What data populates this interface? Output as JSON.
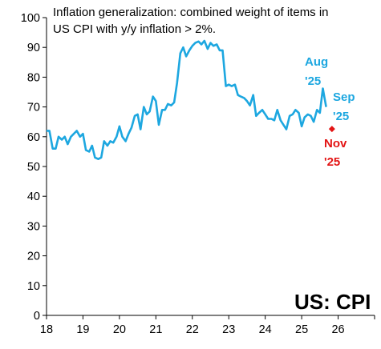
{
  "chart_data": {
    "type": "line",
    "title_lines": [
      "Inflation generalization: combined weight of items in",
      "US CPI with y/y inflation > 2%."
    ],
    "watermark": "US: CPI",
    "xlim": [
      2018,
      2027
    ],
    "ylim": [
      0,
      100
    ],
    "yticks": [
      0,
      10,
      20,
      30,
      40,
      50,
      60,
      70,
      80,
      90,
      100
    ],
    "xtick_values": [
      2018,
      2019,
      2020,
      2021,
      2022,
      2023,
      2024,
      2025,
      2026
    ],
    "xtick_labels": [
      "18",
      "19",
      "20",
      "21",
      "22",
      "23",
      "24",
      "25",
      "26"
    ],
    "grid": false,
    "series": [
      {
        "color": "#1da7e0",
        "x": [
          2018.0,
          2018.08,
          2018.17,
          2018.25,
          2018.33,
          2018.42,
          2018.5,
          2018.58,
          2018.67,
          2018.75,
          2018.83,
          2018.92,
          2019.0,
          2019.08,
          2019.17,
          2019.25,
          2019.33,
          2019.42,
          2019.5,
          2019.58,
          2019.67,
          2019.75,
          2019.83,
          2019.92,
          2020.0,
          2020.08,
          2020.17,
          2020.25,
          2020.33,
          2020.42,
          2020.5,
          2020.58,
          2020.67,
          2020.75,
          2020.83,
          2020.92,
          2021.0,
          2021.08,
          2021.17,
          2021.25,
          2021.33,
          2021.42,
          2021.5,
          2021.58,
          2021.67,
          2021.75,
          2021.83,
          2021.92,
          2022.0,
          2022.08,
          2022.17,
          2022.25,
          2022.33,
          2022.42,
          2022.5,
          2022.58,
          2022.67,
          2022.75,
          2022.83,
          2022.92,
          2023.0,
          2023.08,
          2023.17,
          2023.25,
          2023.33,
          2023.42,
          2023.5,
          2023.58,
          2023.67,
          2023.75,
          2023.83,
          2023.92,
          2024.0,
          2024.08,
          2024.17,
          2024.25,
          2024.33,
          2024.42,
          2024.5,
          2024.58,
          2024.67,
          2024.75,
          2024.83,
          2024.92,
          2025.0,
          2025.08,
          2025.17,
          2025.25,
          2025.33,
          2025.42,
          2025.5,
          2025.58,
          2025.67
        ],
        "y": [
          62,
          62,
          56,
          56,
          60,
          59,
          60,
          57.5,
          60,
          61,
          62,
          60,
          61,
          55.5,
          55,
          57,
          53,
          52.5,
          53,
          58.5,
          57,
          58.5,
          58,
          60,
          63.5,
          60,
          58.5,
          61,
          63,
          67,
          67.5,
          62.5,
          70,
          67.5,
          68.5,
          73.5,
          72,
          64,
          69,
          69,
          71,
          70.5,
          71.5,
          78,
          88,
          90,
          87,
          89,
          90.5,
          91.5,
          92,
          91,
          92.2,
          89.5,
          91.5,
          90.5,
          91,
          89,
          89,
          77,
          77.5,
          77,
          77.5,
          74,
          73.5,
          73,
          72,
          70.5,
          74,
          67,
          68,
          69,
          67.5,
          66,
          66,
          65.5,
          69,
          65.5,
          64,
          62.5,
          67,
          67.5,
          69,
          68,
          63.5,
          66.5,
          67.5,
          67,
          65,
          69,
          68,
          76.2,
          70
        ]
      }
    ],
    "points": [
      {
        "x": 2025.83,
        "y": 62.6,
        "color": "#e31414"
      }
    ],
    "annotations": [
      {
        "id": "aug",
        "lines": [
          "Aug",
          "'25"
        ],
        "color": "#1da7e0"
      },
      {
        "id": "sep",
        "lines": [
          "Sep",
          "'25"
        ],
        "color": "#1da7e0"
      },
      {
        "id": "nov",
        "lines": [
          "Nov",
          "'25"
        ],
        "color": "#e31414"
      }
    ]
  }
}
